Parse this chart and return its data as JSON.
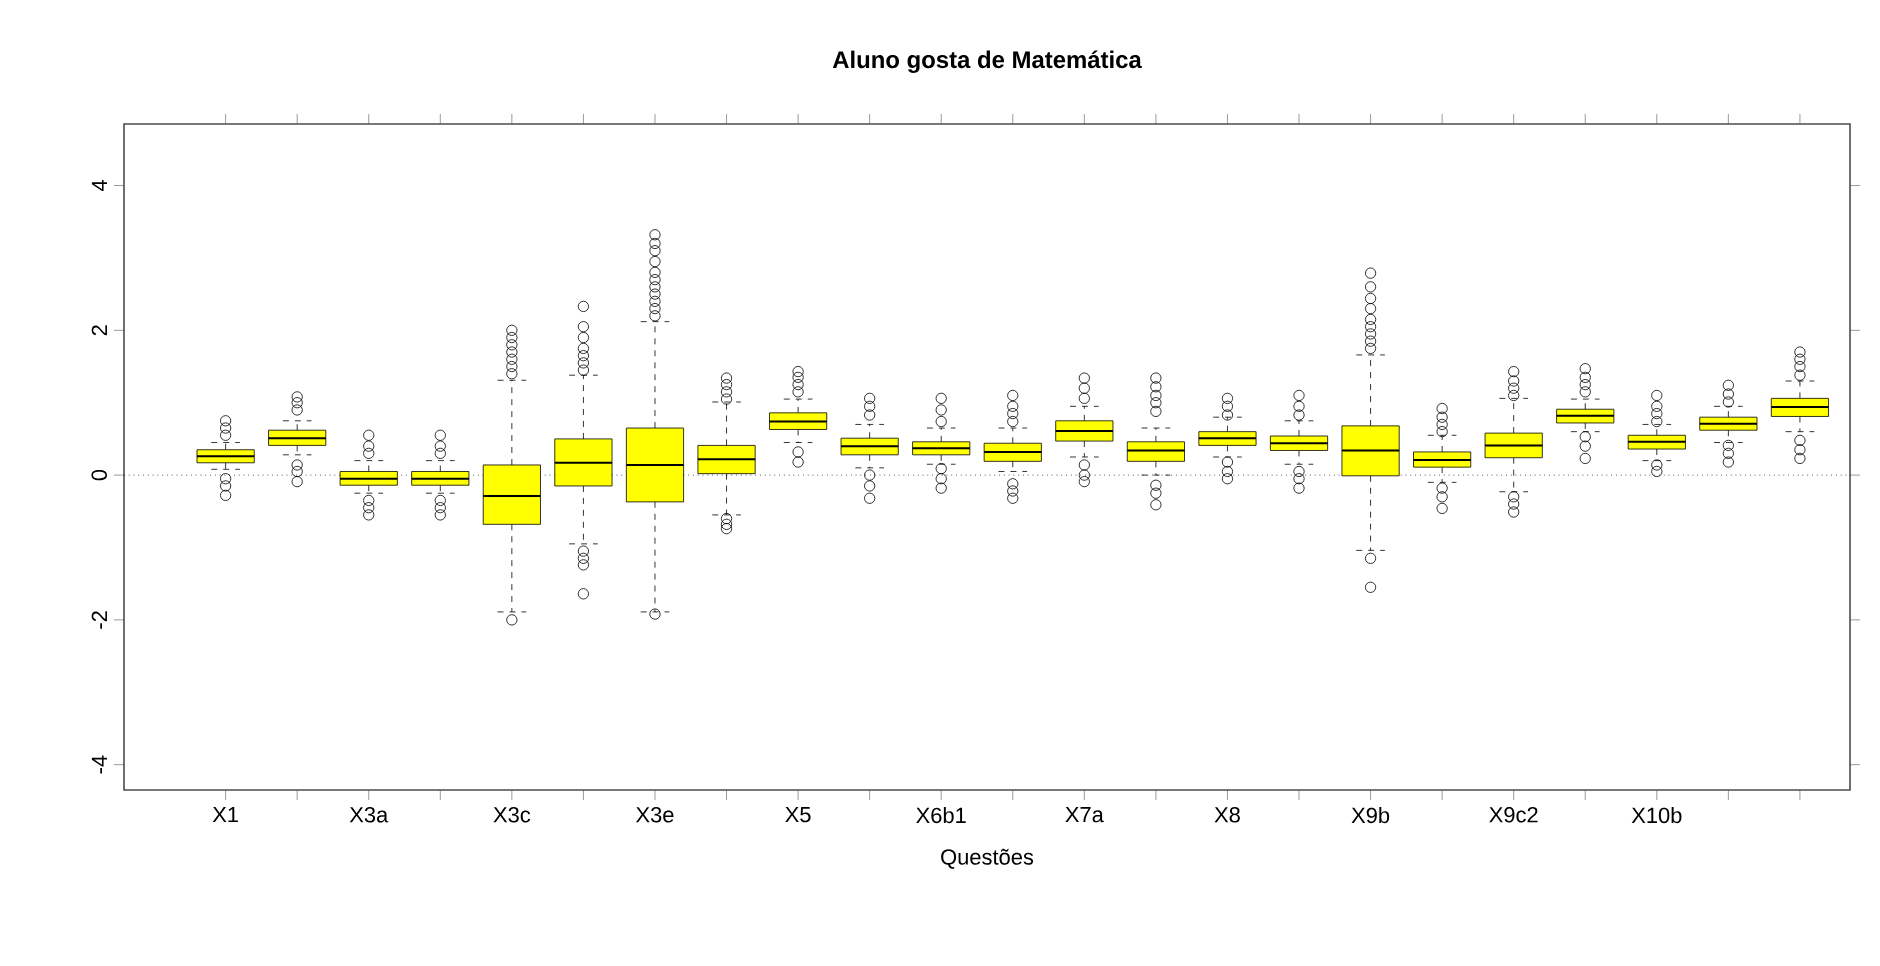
{
  "chart_data": {
    "type": "box",
    "title": "Aluno gosta de Matemática",
    "xlabel": "Questões",
    "categories": [
      "X1",
      null,
      "X3a",
      null,
      "X3c",
      null,
      "X3e",
      null,
      "X5",
      null,
      "X6b1",
      null,
      "X7a",
      null,
      "X8",
      null,
      "X9b",
      null,
      "X9c2",
      null,
      "X10b",
      null,
      null
    ],
    "color": "#ffff00",
    "ylim": [
      -4.35,
      4.85
    ],
    "yticks": [
      -4,
      -2,
      0,
      2,
      4
    ],
    "ref_lines": [
      {
        "axis": "y",
        "value": 0,
        "line_style": "dotted"
      }
    ],
    "boxes": [
      {
        "low": 0.08,
        "q1": 0.17,
        "median": 0.26,
        "q3": 0.35,
        "high": 0.45,
        "outliers": [
          0.55,
          0.65,
          0.75,
          -0.05,
          -0.15,
          -0.28
        ]
      },
      {
        "low": 0.28,
        "q1": 0.41,
        "median": 0.51,
        "q3": 0.62,
        "high": 0.75,
        "outliers": [
          0.9,
          1.0,
          1.08,
          0.14,
          0.05,
          -0.09
        ]
      },
      {
        "low": -0.25,
        "q1": -0.14,
        "median": -0.05,
        "q3": 0.05,
        "high": 0.2,
        "outliers": [
          0.3,
          0.4,
          0.55,
          -0.35,
          -0.45,
          -0.55
        ]
      },
      {
        "low": -0.25,
        "q1": -0.14,
        "median": -0.05,
        "q3": 0.05,
        "high": 0.2,
        "outliers": [
          0.3,
          0.4,
          0.55,
          -0.35,
          -0.45,
          -0.55
        ]
      },
      {
        "low": -1.89,
        "q1": -0.68,
        "median": -0.29,
        "q3": 0.14,
        "high": 1.31,
        "outliers": [
          1.4,
          1.5,
          1.6,
          1.7,
          1.8,
          1.9,
          2.0,
          -2.0
        ]
      },
      {
        "low": -0.95,
        "q1": -0.15,
        "median": 0.17,
        "q3": 0.5,
        "high": 1.38,
        "outliers": [
          1.45,
          1.55,
          1.65,
          1.75,
          1.9,
          2.05,
          2.33,
          -1.05,
          -1.15,
          -1.24,
          -1.64
        ]
      },
      {
        "low": -1.89,
        "q1": -0.37,
        "median": 0.14,
        "q3": 0.65,
        "high": 2.12,
        "outliers": [
          2.2,
          2.3,
          2.4,
          2.5,
          2.6,
          2.7,
          2.8,
          2.95,
          3.1,
          3.2,
          3.32,
          -1.92
        ]
      },
      {
        "low": -0.55,
        "q1": 0.02,
        "median": 0.22,
        "q3": 0.41,
        "high": 1.01,
        "outliers": [
          1.05,
          1.15,
          1.25,
          1.34,
          -0.6,
          -0.68,
          -0.74
        ]
      },
      {
        "low": 0.45,
        "q1": 0.63,
        "median": 0.74,
        "q3": 0.86,
        "high": 1.05,
        "outliers": [
          1.15,
          1.25,
          1.35,
          1.43,
          0.32,
          0.18
        ]
      },
      {
        "low": 0.1,
        "q1": 0.28,
        "median": 0.4,
        "q3": 0.51,
        "high": 0.7,
        "outliers": [
          0.83,
          0.95,
          1.06,
          0.0,
          -0.15,
          -0.32
        ]
      },
      {
        "low": 0.15,
        "q1": 0.28,
        "median": 0.37,
        "q3": 0.46,
        "high": 0.65,
        "outliers": [
          0.74,
          0.9,
          1.06,
          0.09,
          -0.05,
          -0.18
        ]
      },
      {
        "low": 0.05,
        "q1": 0.19,
        "median": 0.32,
        "q3": 0.44,
        "high": 0.65,
        "outliers": [
          0.74,
          0.85,
          0.95,
          1.1,
          -0.12,
          -0.22,
          -0.32
        ]
      },
      {
        "low": 0.25,
        "q1": 0.47,
        "median": 0.61,
        "q3": 0.75,
        "high": 0.95,
        "outliers": [
          1.06,
          1.2,
          1.34,
          0.14,
          0.0,
          -0.09
        ]
      },
      {
        "low": 0.0,
        "q1": 0.19,
        "median": 0.34,
        "q3": 0.46,
        "high": 0.65,
        "outliers": [
          0.88,
          1.0,
          1.1,
          1.22,
          1.34,
          -0.14,
          -0.25,
          -0.41
        ]
      },
      {
        "low": 0.25,
        "q1": 0.41,
        "median": 0.51,
        "q3": 0.6,
        "high": 0.8,
        "outliers": [
          0.83,
          0.95,
          1.06,
          0.18,
          0.05,
          -0.05
        ]
      },
      {
        "low": 0.15,
        "q1": 0.34,
        "median": 0.44,
        "q3": 0.54,
        "high": 0.75,
        "outliers": [
          0.83,
          0.95,
          1.1,
          0.05,
          -0.05,
          -0.18
        ]
      },
      {
        "low": -1.04,
        "q1": -0.01,
        "median": 0.34,
        "q3": 0.68,
        "high": 1.66,
        "outliers": [
          1.75,
          1.85,
          1.95,
          2.05,
          2.15,
          2.3,
          2.44,
          2.6,
          2.79,
          -1.15,
          -1.55
        ]
      },
      {
        "low": -0.1,
        "q1": 0.11,
        "median": 0.21,
        "q3": 0.32,
        "high": 0.55,
        "outliers": [
          0.6,
          0.7,
          0.8,
          0.92,
          -0.18,
          -0.3,
          -0.46
        ]
      },
      {
        "low": -0.23,
        "q1": 0.24,
        "median": 0.41,
        "q3": 0.58,
        "high": 1.06,
        "outliers": [
          1.1,
          1.2,
          1.3,
          1.43,
          -0.3,
          -0.4,
          -0.51
        ]
      },
      {
        "low": 0.6,
        "q1": 0.72,
        "median": 0.82,
        "q3": 0.91,
        "high": 1.05,
        "outliers": [
          1.15,
          1.25,
          1.35,
          1.47,
          0.53,
          0.4,
          0.23
        ]
      },
      {
        "low": 0.2,
        "q1": 0.36,
        "median": 0.46,
        "q3": 0.55,
        "high": 0.7,
        "outliers": [
          0.74,
          0.85,
          0.95,
          1.1,
          0.14,
          0.05
        ]
      },
      {
        "low": 0.45,
        "q1": 0.62,
        "median": 0.71,
        "q3": 0.8,
        "high": 0.95,
        "outliers": [
          1.01,
          1.12,
          1.24,
          0.41,
          0.3,
          0.18
        ]
      },
      {
        "low": 0.6,
        "q1": 0.81,
        "median": 0.94,
        "q3": 1.06,
        "high": 1.3,
        "outliers": [
          1.38,
          1.5,
          1.6,
          1.7,
          0.48,
          0.35,
          0.23
        ]
      }
    ]
  }
}
